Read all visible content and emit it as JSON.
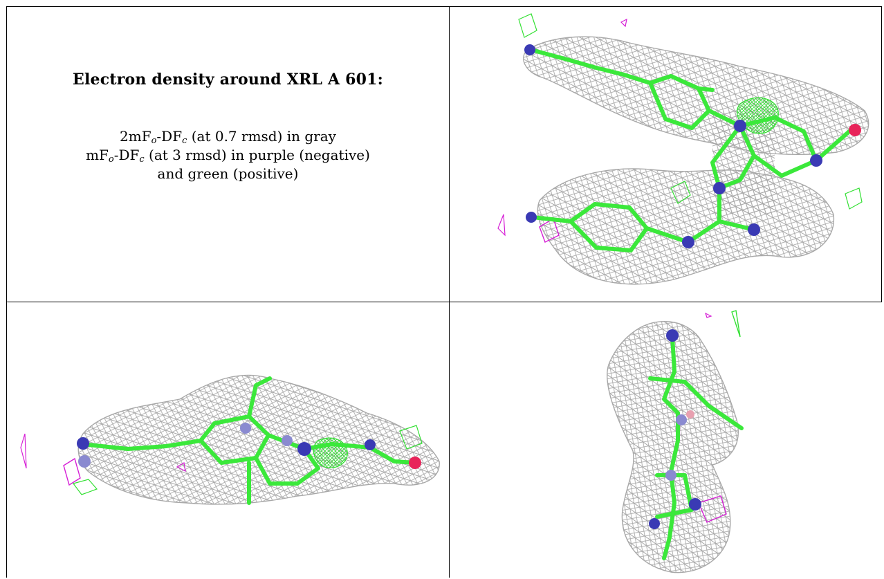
{
  "title": "Electron density around XRL A 601:",
  "legend": {
    "line1": {
      "pre": "2mF",
      "sub1": "o",
      "mid": "-DF",
      "sub2": "c",
      "post": " (at 0.7 rmsd) in gray"
    },
    "line2": {
      "pre": "mF",
      "sub1": "o",
      "mid": "-DF",
      "sub2": "c",
      "post": " (at 3 rmsd) in purple (negative)"
    },
    "line3": "and green (positive)"
  },
  "colors": {
    "mesh_2fofc": "#a8a8a8",
    "mesh_fofc_positive": "#33e033",
    "mesh_fofc_negative": "#d61fd6",
    "carbon": "#3be83b",
    "nitrogen": "#3a3ab4",
    "oxygen": "#e8245a"
  },
  "panels": [
    {
      "view": "top-right",
      "content": "electron density mesh around ligand"
    },
    {
      "view": "bottom-left",
      "content": "electron density mesh around ligand"
    },
    {
      "view": "bottom-right",
      "content": "electron density mesh around ligand"
    }
  ]
}
